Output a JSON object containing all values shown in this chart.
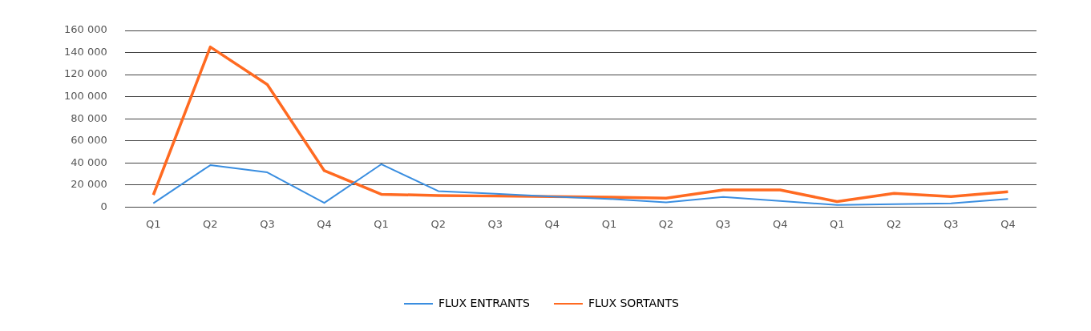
{
  "chart_data": {
    "type": "line",
    "categories": [
      "Q1",
      "Q2",
      "Q3",
      "Q4",
      "Q1",
      "Q2",
      "Q3",
      "Q4",
      "Q1",
      "Q2",
      "Q3",
      "Q4",
      "Q1",
      "Q2",
      "Q3",
      "Q4"
    ],
    "series": [
      {
        "name": "FLUX ENTRANTS",
        "color": "#3a8ee0",
        "values": [
          3500,
          38000,
          31500,
          3800,
          38800,
          14500,
          12000,
          9500,
          7400,
          4300,
          9100,
          5500,
          1900,
          2600,
          3400,
          7400
        ]
      },
      {
        "name": "FLUX SORTANTS",
        "color": "#ff6a21",
        "values": [
          11000,
          145000,
          111000,
          33000,
          11600,
          10500,
          10000,
          9500,
          9000,
          8100,
          15600,
          15600,
          5000,
          12500,
          9600,
          13900
        ]
      }
    ],
    "ylim": [
      0,
      160000
    ],
    "yticks": [
      {
        "value": 0,
        "label": "0"
      },
      {
        "value": 20000,
        "label": "20 000"
      },
      {
        "value": 40000,
        "label": "40 000"
      },
      {
        "value": 60000,
        "label": "60 000"
      },
      {
        "value": 80000,
        "label": "80 000"
      },
      {
        "value": 100000,
        "label": "100 000"
      },
      {
        "value": 120000,
        "label": "120 000"
      },
      {
        "value": 140000,
        "label": "140 000"
      },
      {
        "value": 160000,
        "label": "160 000"
      }
    ],
    "grid": "y",
    "legend": "bottom",
    "marker": "none",
    "line_style": "solid"
  }
}
